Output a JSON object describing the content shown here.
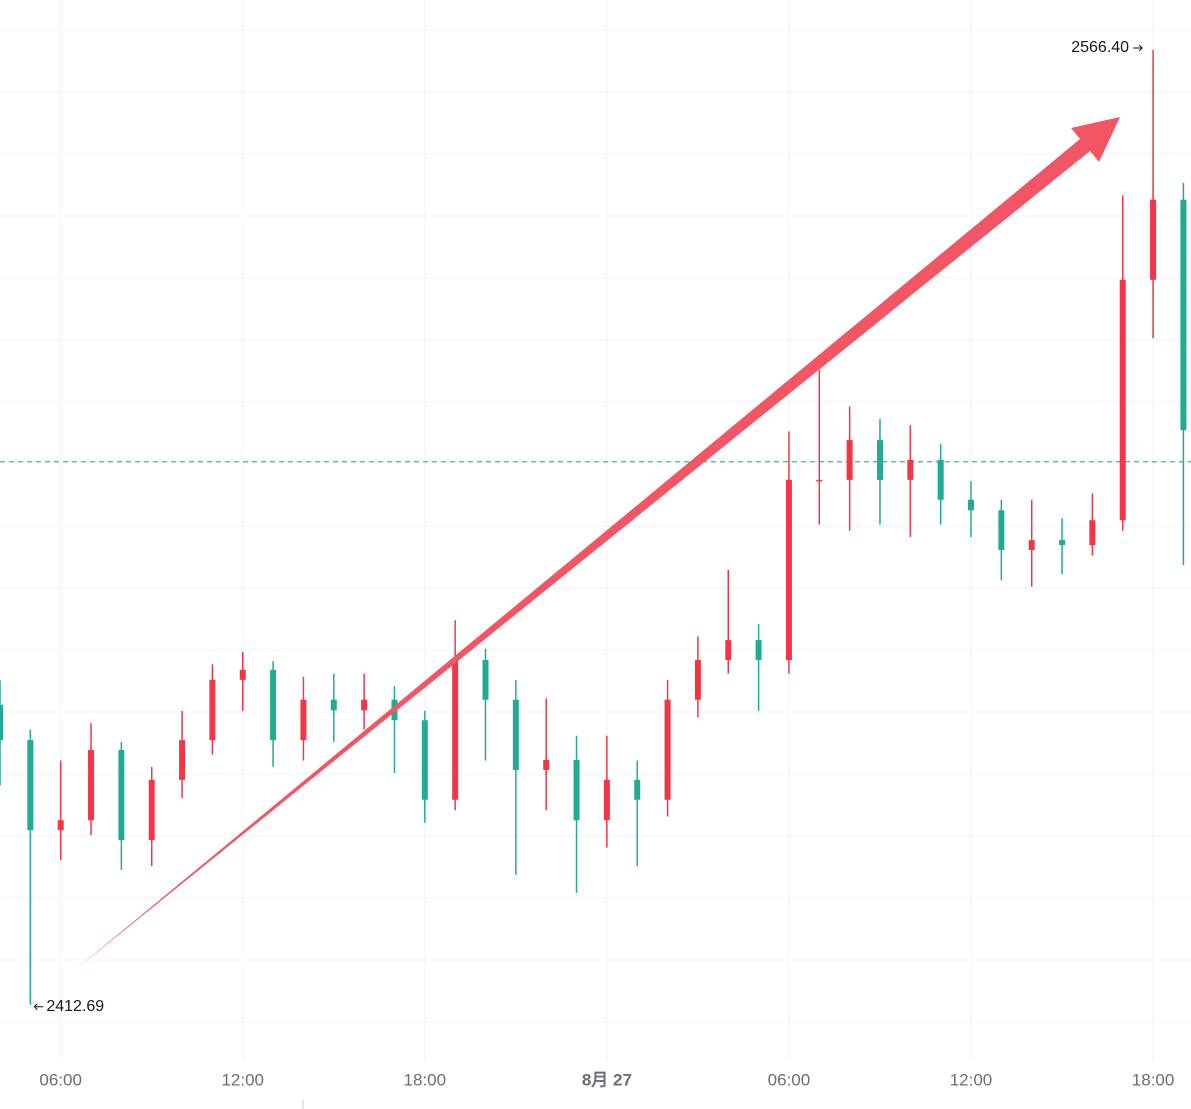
{
  "chart_data": {
    "type": "candlestick",
    "x": [
      4,
      5,
      6,
      7,
      8,
      9,
      10,
      11,
      12,
      13,
      14,
      15,
      16,
      17,
      18,
      19,
      20,
      21,
      22,
      23,
      24,
      25,
      26,
      27,
      28,
      29,
      30,
      31,
      32,
      33,
      34,
      35,
      36,
      37,
      38,
      39,
      40,
      41,
      42,
      43
    ],
    "open": [
      2461.0,
      2455.3,
      2440.8,
      2442.4,
      2453.7,
      2439.2,
      2448.9,
      2455.3,
      2465.0,
      2466.6,
      2455.3,
      2461.8,
      2460.1,
      2461.8,
      2458.5,
      2445.7,
      2468.2,
      2461.8,
      2450.5,
      2452.1,
      2442.4,
      2448.9,
      2445.7,
      2461.8,
      2468.2,
      2471.4,
      2468.2,
      2497.2,
      2497.2,
      2503.6,
      2497.2,
      2500.4,
      2494.0,
      2492.3,
      2485.9,
      2487.5,
      2486.7,
      2490.7,
      2529.4,
      2542.3
    ],
    "high": [
      2465.0,
      2457.0,
      2452.0,
      2458.0,
      2455.0,
      2451.0,
      2460.0,
      2467.5,
      2469.5,
      2468.0,
      2465.5,
      2466.0,
      2466.0,
      2464.0,
      2460.0,
      2474.6,
      2470.0,
      2465.0,
      2462.0,
      2456.0,
      2456.0,
      2452.0,
      2465.0,
      2472.0,
      2482.7,
      2474.0,
      2505.0,
      2514.9,
      2509.0,
      2507.0,
      2506.0,
      2503.0,
      2497.0,
      2494.0,
      2494.0,
      2491.0,
      2495.0,
      2543.0,
      2566.4,
      2545.0
    ],
    "low": [
      2448.0,
      2412.69,
      2436.0,
      2440.0,
      2434.4,
      2435.0,
      2446.0,
      2453.0,
      2460.0,
      2451.0,
      2452.0,
      2455.0,
      2457.0,
      2450.0,
      2442.0,
      2444.0,
      2452.0,
      2433.6,
      2444.0,
      2430.7,
      2438.0,
      2435.0,
      2443.0,
      2459.0,
      2466.0,
      2460.0,
      2466.0,
      2490.0,
      2489.0,
      2490.0,
      2488.0,
      2490.0,
      2488.0,
      2481.0,
      2480.0,
      2482.0,
      2485.0,
      2489.0,
      2520.0,
      2483.5
    ],
    "close": [
      2455.3,
      2440.8,
      2442.4,
      2453.7,
      2439.2,
      2448.9,
      2455.3,
      2465.0,
      2466.6,
      2455.3,
      2461.8,
      2460.1,
      2461.8,
      2458.5,
      2445.7,
      2468.2,
      2461.8,
      2450.5,
      2452.1,
      2442.4,
      2448.9,
      2445.7,
      2461.8,
      2468.2,
      2471.4,
      2468.2,
      2497.2,
      2497.2,
      2503.6,
      2497.2,
      2500.4,
      2494.0,
      2492.3,
      2485.9,
      2487.5,
      2486.7,
      2490.7,
      2529.4,
      2542.3,
      2505.2
    ],
    "up_color": "#f23645",
    "down_color": "#22ab94",
    "xlim": [
      4,
      43.25
    ],
    "ylim": [
      2403.8,
      2574.45
    ],
    "xticks": [
      {
        "value": 6,
        "label": "06:00"
      },
      {
        "value": 12,
        "label": "12:00"
      },
      {
        "value": 18,
        "label": "18:00"
      },
      {
        "value": 24,
        "label": "8月 27"
      },
      {
        "value": 30,
        "label": "06:00"
      },
      {
        "value": 36,
        "label": "12:00"
      },
      {
        "value": 42,
        "label": "18:00"
      }
    ],
    "max_label": "2566.40",
    "min_label": "2412.69",
    "price_line": 2500.1,
    "grid": true
  }
}
